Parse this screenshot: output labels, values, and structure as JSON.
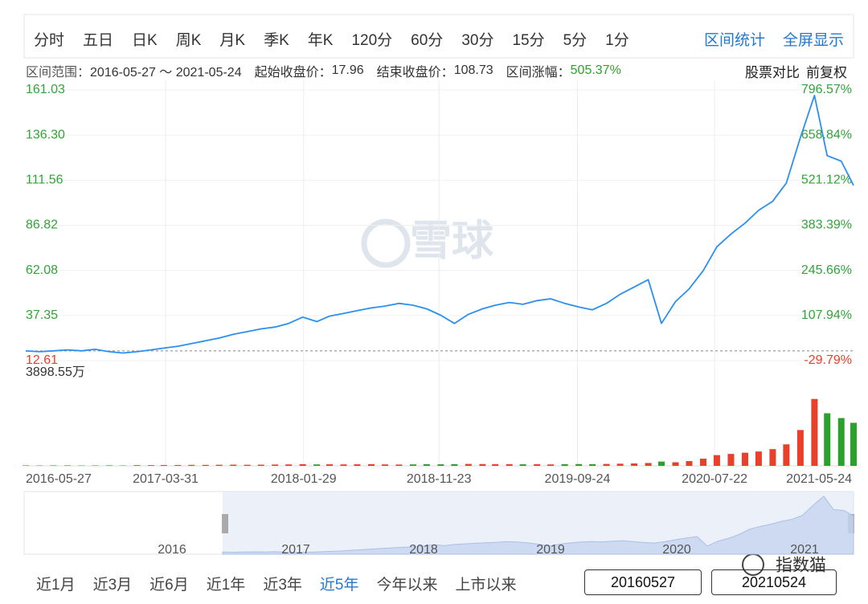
{
  "toolbar": {
    "periods": [
      "分时",
      "五日",
      "日K",
      "周K",
      "月K",
      "季K",
      "年K",
      "120分",
      "60分",
      "30分",
      "15分",
      "5分",
      "1分"
    ],
    "actions": [
      "区间统计",
      "全屏显示"
    ]
  },
  "summary": {
    "range_label": "区间范围：",
    "range": "2016-05-27 ～ 2021-05-24",
    "start_label": "起始收盘价：",
    "start_close": 17.96,
    "end_label": "结束收盘价：",
    "end_close": 108.73,
    "change_label": "区间涨幅：",
    "change": "505.37%",
    "links": [
      "股票对比",
      "前复权"
    ]
  },
  "chart_data": {
    "type": "line",
    "x": [
      "2016-05-27",
      "2016-06-27",
      "2016-07-27",
      "2016-08-27",
      "2016-09-27",
      "2016-10-27",
      "2016-11-27",
      "2016-12-27",
      "2017-01-27",
      "2017-02-27",
      "2017-03-27",
      "2017-04-27",
      "2017-05-27",
      "2017-06-27",
      "2017-07-27",
      "2017-08-27",
      "2017-09-27",
      "2017-10-27",
      "2017-11-27",
      "2017-12-27",
      "2018-01-27",
      "2018-02-27",
      "2018-03-27",
      "2018-04-27",
      "2018-05-27",
      "2018-06-27",
      "2018-07-27",
      "2018-08-27",
      "2018-09-27",
      "2018-10-27",
      "2018-11-27",
      "2018-12-27",
      "2019-01-27",
      "2019-02-27",
      "2019-03-27",
      "2019-04-27",
      "2019-05-27",
      "2019-06-27",
      "2019-07-27",
      "2019-08-27",
      "2019-09-27",
      "2019-10-27",
      "2019-11-27",
      "2019-12-27",
      "2020-01-27",
      "2020-02-27",
      "2020-03-27",
      "2020-04-27",
      "2020-05-27",
      "2020-06-27",
      "2020-07-27",
      "2020-08-27",
      "2020-09-27",
      "2020-10-27",
      "2020-11-27",
      "2020-12-27",
      "2021-01-27",
      "2021-02-27",
      "2021-03-27",
      "2021-04-27",
      "2021-05-24"
    ],
    "series": [
      {
        "color": "#2b8ff0",
        "values": [
          17.96,
          17.5,
          18.0,
          18.5,
          18.0,
          18.8,
          17.5,
          16.8,
          17.5,
          18.5,
          19.5,
          20.5,
          22.0,
          23.5,
          25.0,
          27.0,
          28.5,
          30.0,
          31.0,
          33.0,
          36.5,
          34.0,
          37.0,
          38.5,
          40.0,
          41.5,
          42.5,
          44.0,
          43.0,
          41.0,
          37.5,
          33.0,
          38.0,
          41.0,
          43.0,
          44.5,
          43.5,
          45.5,
          46.5,
          44.0,
          42.0,
          40.5,
          44.0,
          49.0,
          53.0,
          57.0,
          33.0,
          45.0,
          52.0,
          62.0,
          75.0,
          82.0,
          88.0,
          95.0,
          100.0,
          110.0,
          135.0,
          158.0,
          125.0,
          122.0,
          108.73
        ]
      }
    ],
    "volume": {
      "up_color": "#e8402a",
      "down_color": "#2ca02c",
      "ylim": [
        0,
        3898.55
      ],
      "yticks": [
        {
          "value": 3898.55,
          "label": "3898.55万"
        }
      ],
      "values": [
        20,
        15,
        18,
        20,
        15,
        18,
        20,
        15,
        30,
        30,
        35,
        35,
        40,
        40,
        45,
        50,
        45,
        50,
        55,
        60,
        70,
        60,
        65,
        60,
        65,
        70,
        60,
        55,
        60,
        70,
        65,
        70,
        80,
        75,
        70,
        70,
        65,
        70,
        60,
        70,
        75,
        70,
        80,
        90,
        100,
        120,
        180,
        150,
        200,
        300,
        450,
        500,
        550,
        600,
        700,
        900,
        1500,
        2800,
        2200,
        2000,
        1800
      ]
    },
    "xlim": [
      "2016-05-27",
      "2021-05-24"
    ],
    "xticks": [
      "2016-05-27",
      "2017-03-31",
      "2018-01-29",
      "2018-11-23",
      "2019-09-24",
      "2020-07-22",
      "2021-05-24"
    ],
    "ylim": [
      12.61,
      161.03
    ],
    "yticks": [
      12.61,
      37.35,
      62.08,
      86.82,
      111.56,
      {
        "value": 136.3,
        "label": "136.30"
      },
      161.03
    ],
    "y2lim": [
      -29.79,
      796.57
    ],
    "y2ticks": [
      {
        "value": -29.79,
        "label": "-29.79%"
      },
      {
        "value": 107.94,
        "label": "107.94%"
      },
      {
        "value": 245.66,
        "label": "245.66%"
      },
      {
        "value": 383.39,
        "label": "383.39%"
      },
      {
        "value": 521.12,
        "label": "521.12%"
      },
      {
        "value": 658.84,
        "label": "658.84%"
      },
      {
        "value": 796.57,
        "label": "796.57%"
      }
    ],
    "grid": true
  },
  "navigator": {
    "years": [
      "2016",
      "2017",
      "2018",
      "2019",
      "2020",
      "2021"
    ]
  },
  "ranges": {
    "buttons": [
      "近1月",
      "近3月",
      "近6月",
      "近1年",
      "近3年",
      "近5年",
      "今年以来",
      "上市以来"
    ],
    "active": 5,
    "start_input": "20160527",
    "end_input": "20210524"
  },
  "watermark": "雪球",
  "brand": "指数猫"
}
